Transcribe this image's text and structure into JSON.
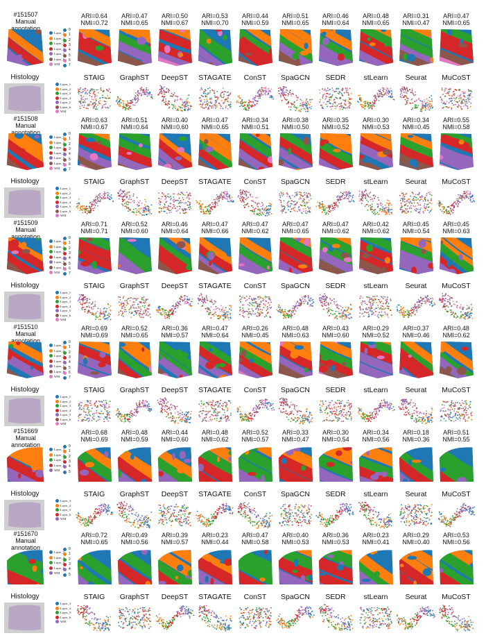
{
  "methods": [
    "STAIG",
    "GraphST",
    "DeepST",
    "STAGATE",
    "ConST",
    "SpaGCN",
    "SEDR",
    "stLearn",
    "Seurat",
    "MuCoST"
  ],
  "labels": {
    "manual": "Manual annotation",
    "histology": "Histology"
  },
  "colors": {
    "layer1": "#1f77b4",
    "layer2": "#ff7f0e",
    "layer3": "#2ca02c",
    "layer4": "#d62728",
    "layer5": "#9467bd",
    "layer6": "#8c564b",
    "wm": "#e377c2"
  },
  "samples": [
    {
      "id": "#151507",
      "legend": [
        "Layer_1",
        "Layer_2",
        "Layer_3",
        "Layer_4",
        "Layer_5",
        "Layer_6",
        "WM"
      ],
      "clusters": [
        "0",
        "1",
        "2",
        "3",
        "4",
        "5",
        "6",
        "7"
      ],
      "ari": [
        "ARI=0.64",
        "ARI=0.47",
        "ARI=0.50",
        "ARI=0.53",
        "ARI=0.44",
        "ARI=0.51",
        "ARI=0.46",
        "ARI=0.48",
        "ARI=0.31",
        "ARI=0.47"
      ],
      "nmi": [
        "NMI=0.72",
        "NMI=0.65",
        "NMI=0.67",
        "NMI=0.70",
        "NMI=0.59",
        "NMI=0.65",
        "NMI=0.64",
        "NMI=0.65",
        "NMI=0.47",
        "NMI=0.65"
      ]
    },
    {
      "id": "#151508",
      "legend": [
        "Layer_1",
        "Layer_2",
        "Layer_3",
        "Layer_4",
        "Layer_5",
        "Layer_6",
        "WM"
      ],
      "clusters": [
        "0",
        "1",
        "2",
        "3",
        "4",
        "5",
        "6",
        "7"
      ],
      "ari": [
        "ARI=0.63",
        "ARI=0.51",
        "ARI=0.40",
        "ARI=0.47",
        "ARI=0.34",
        "ARI=0.38",
        "ARI=0.35",
        "ARI=0.30",
        "ARI=0.34",
        "ARI=0.55"
      ],
      "nmi": [
        "NMI=0.67",
        "NMI=0.64",
        "NMI=0.60",
        "NMI=0.65",
        "NMI=0.51",
        "NMI=0.50",
        "NMI=0.52",
        "NMI=0.53",
        "NMI=0.45",
        "NMI=0.58"
      ]
    },
    {
      "id": "#151509",
      "legend": [
        "Layer_1",
        "Layer_2",
        "Layer_3",
        "Layer_4",
        "Layer_5",
        "Layer_6",
        "WM"
      ],
      "clusters": [
        "0",
        "1",
        "2",
        "3",
        "4",
        "5",
        "6",
        "7"
      ],
      "ari": [
        "ARI=0.71",
        "ARI=0.52",
        "ARI=0.46",
        "ARI=0.47",
        "ARI=0.47",
        "ARI=0.47",
        "ARI=0.47",
        "ARI=0.42",
        "ARI=0.45",
        "ARI=0.45"
      ],
      "nmi": [
        "NMI=0.71",
        "NMI=0.60",
        "NMI=0.64",
        "NMI=0.66",
        "NMI=0.62",
        "NMI=0.65",
        "NMI=0.62",
        "NMI=0.62",
        "NMI=0.54",
        "NMI=0.63"
      ]
    },
    {
      "id": "#151510",
      "legend": [
        "Layer_1",
        "Layer_2",
        "Layer_3",
        "Layer_4",
        "Layer_5",
        "Layer_6",
        "WM"
      ],
      "clusters": [
        "0",
        "1",
        "2",
        "3",
        "4",
        "5",
        "6",
        "7"
      ],
      "ari": [
        "ARI=0.69",
        "ARI=0.52",
        "ARI=0.36",
        "ARI=0.47",
        "ARI=0.26",
        "ARI=0.48",
        "ARI=0.43",
        "ARI=0.29",
        "ARI=0.37",
        "ARI=0.48"
      ],
      "nmi": [
        "NMI=0.69",
        "NMI=0.65",
        "NMI=0.57",
        "NMI=0.64",
        "NMI=0.45",
        "NMI=0.63",
        "NMI=0.60",
        "NMI=0.52",
        "NMI=0.46",
        "NMI=0.62"
      ]
    },
    {
      "id": "#151669",
      "legend": [
        "Layer_3",
        "Layer_4",
        "Layer_5",
        "Layer_6",
        "WM"
      ],
      "clusters": [
        "0",
        "1",
        "2",
        "3",
        "4",
        "5"
      ],
      "ari": [
        "ARI=0.68",
        "ARI=0.48",
        "ARI=0.44",
        "ARI=0.48",
        "ARI=0.52",
        "ARI=0.33",
        "ARI=0.30",
        "ARI=0.34",
        "ARI=0.18",
        "ARI=0.51"
      ],
      "nmi": [
        "NMI=0.69",
        "NMI=0.59",
        "NMI=0.60",
        "NMI=0.62",
        "NMI=0.57",
        "NMI=0.47",
        "NMI=0.54",
        "NMI=0.56",
        "NMI=0.36",
        "NMI=0.55"
      ]
    },
    {
      "id": "#151670",
      "legend": [
        "Layer_3",
        "Layer_4",
        "Layer_5",
        "Layer_6",
        "WM"
      ],
      "clusters": [
        "0",
        "1",
        "2",
        "3",
        "4",
        "5"
      ],
      "ari": [
        "ARI=0.72",
        "ARI=0.49",
        "ARI=0.39",
        "ARI=0.23",
        "ARI=0.47",
        "ARI=0.40",
        "ARI=0.36",
        "ARI=0.23",
        "ARI=0.29",
        "ARI=0.53"
      ],
      "nmi": [
        "NMI=0.65",
        "NMI=0.56",
        "NMI=0.57",
        "NMI=0.44",
        "NMI=0.58",
        "NMI=0.53",
        "NMI=0.53",
        "NMI=0.41",
        "NMI=0.40",
        "NMI=0.56"
      ]
    }
  ]
}
